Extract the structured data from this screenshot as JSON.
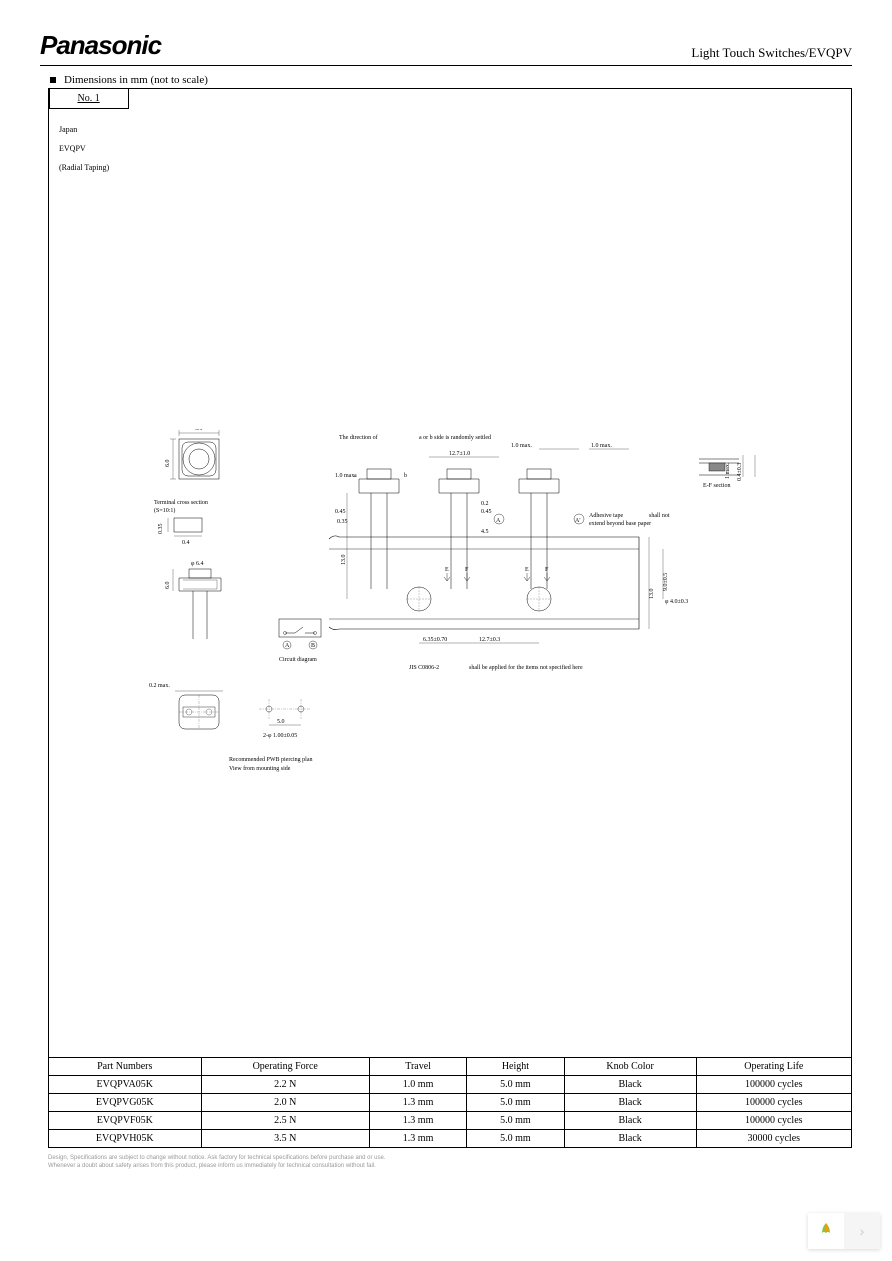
{
  "header": {
    "brand": "Panasonic",
    "doc_title": "Light Touch Switches/EVQPV"
  },
  "section": {
    "title": "Dimensions in mm (not to scale)"
  },
  "tab": {
    "label": "No. 1"
  },
  "meta": {
    "origin": "Japan",
    "series": "EVQPV",
    "packaging": "(Radial Taping)"
  },
  "diagram": {
    "labels": {
      "direction": "The direction of",
      "scale_note": "a or b side is randomly settled",
      "terminal": "Terminal cross section",
      "terminal_scale": "(S=10:1)",
      "circuit": "Circuit diagram",
      "pwb": "Recommended PWB piercing plan",
      "view": "View from mounting side",
      "jis": "JIS C0806-2",
      "jis_note": "shall be applied for the items not specified here",
      "ef_section": "E-F section",
      "adhesive": "Adhesive tape",
      "adhesive_note": "shall not",
      "adhesive_note2": "extend beyond base paper"
    },
    "dims": {
      "d61": "6.1",
      "d60": "6.0",
      "d60_2": "6.0",
      "d64": "φ 6.4",
      "d04": "0.4",
      "d035": "0.35",
      "d02max": "0.2 max.",
      "d10max": "1.0 max.",
      "d10max2": "1.0 max.",
      "d10max3": "1.0 max.",
      "d1274": "12.7±1.0",
      "d1274_2": "12.7±0.3",
      "d130": "13.0",
      "d130_2": "13.0",
      "d045": "0.45",
      "d02": "0.2",
      "d45": "4.5",
      "d635": "6.35±0.70",
      "d50": "5.0",
      "d90": "9.0±0.5",
      "d403": "φ 4.0±0.3",
      "d04_03": "0.4±0.3",
      "d2_1": "2-φ 1.00±0.05",
      "d1_max": "1 max.",
      "a": "A",
      "b": "B",
      "a2": "A'",
      "e": "E",
      "f": "F"
    }
  },
  "table": {
    "columns": [
      "Part Numbers",
      "Operating Force",
      "Travel",
      "Height",
      "Knob Color",
      "Operating Life"
    ],
    "rows": [
      [
        "EVQPVA05K",
        "2.2 N",
        "1.0 mm",
        "5.0 mm",
        "Black",
        "100000 cycles"
      ],
      [
        "EVQPVG05K",
        "2.0 N",
        "1.3 mm",
        "5.0 mm",
        "Black",
        "100000 cycles"
      ],
      [
        "EVQPVF05K",
        "2.5 N",
        "1.3 mm",
        "5.0 mm",
        "Black",
        "100000 cycles"
      ],
      [
        "EVQPVH05K",
        "3.5 N",
        "1.3 mm",
        "5.0 mm",
        "Black",
        "30000 cycles"
      ]
    ]
  },
  "footer": {
    "line1": "Design, Specifications are subject to change without notice.     Ask factory for technical specifications before purchase and or use.",
    "line2": "Whenever a doubt about safety arises from this product, please inform us immediately for technical consultation without fail."
  }
}
